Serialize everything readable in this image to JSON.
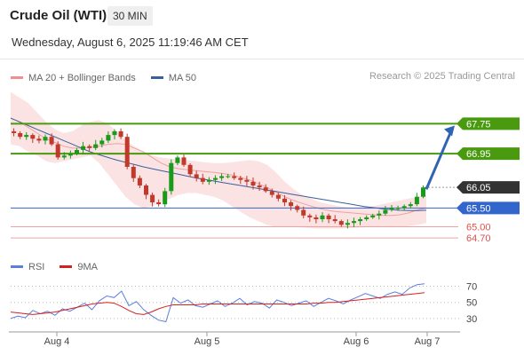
{
  "header": {
    "title": "Crude Oil (WTI)",
    "timeframe": "30 MIN",
    "datetime": "Wednesday, August 6, 2025 11:19:46 AM CET",
    "credit": "Research © 2025 Trading Central"
  },
  "colors": {
    "bollinger": "#f08f8f",
    "ma50": "#3a5f9e",
    "bullish": "#1a9a1a",
    "bearish": "#c0392b",
    "resistance": "#4a9a10",
    "support_line": "#3366cc",
    "pivot_tag": "#333333",
    "support_text": "#d9534f",
    "arrow": "#2e64b4",
    "rsi": "#5b7fde",
    "rsi_ma": "#d62020"
  },
  "chart_data": [
    {
      "type": "candlestick",
      "legend": [
        {
          "name": "MA 20 + Bollinger Bands",
          "color": "#f08f8f"
        },
        {
          "name": "MA 50",
          "color": "#3a5f9e"
        }
      ],
      "x_ticks": [
        "Aug 4",
        "Aug 5",
        "Aug 6",
        "Aug 7"
      ],
      "ylim": [
        64.3,
        68.4
      ],
      "levels": [
        {
          "value": 67.75,
          "label": "67.75",
          "kind": "resistance"
        },
        {
          "value": 66.95,
          "label": "66.95",
          "kind": "resistance"
        },
        {
          "value": 66.05,
          "label": "66.05",
          "kind": "pivot"
        },
        {
          "value": 65.5,
          "label": "65.50",
          "kind": "support"
        },
        {
          "value": 65.0,
          "label": "65.00",
          "kind": "minor"
        },
        {
          "value": 64.7,
          "label": "64.70",
          "kind": "minor"
        }
      ],
      "target_arrow": {
        "from": 66.0,
        "to": 67.7
      },
      "close_path": [
        67.5,
        67.4,
        67.45,
        67.35,
        67.3,
        67.4,
        67.2,
        66.85,
        66.9,
        66.95,
        67.05,
        67.15,
        67.1,
        67.2,
        67.3,
        67.45,
        67.55,
        67.4,
        66.6,
        66.3,
        66.1,
        65.85,
        65.65,
        65.6,
        65.95,
        66.7,
        66.85,
        66.65,
        66.4,
        66.3,
        66.2,
        66.25,
        66.3,
        66.35,
        66.35,
        66.3,
        66.25,
        66.2,
        66.1,
        66.05,
        65.95,
        65.85,
        65.75,
        65.65,
        65.55,
        65.45,
        65.3,
        65.25,
        65.2,
        65.3,
        65.2,
        65.15,
        65.05,
        65.1,
        65.15,
        65.2,
        65.25,
        65.3,
        65.35,
        65.45,
        65.5,
        65.5,
        65.55,
        65.6,
        65.8,
        66.05
      ],
      "ma20": [
        67.9,
        67.8,
        67.65,
        67.5,
        67.35,
        67.25,
        67.15,
        67.1,
        67.1,
        67.12,
        67.15,
        67.2,
        67.22,
        67.2,
        67.1,
        67.0,
        66.85,
        66.7,
        66.6,
        66.55,
        66.52,
        66.5,
        66.47,
        66.45,
        66.42,
        66.38,
        66.32,
        66.25,
        66.15,
        66.05,
        65.92,
        65.8,
        65.7,
        65.62,
        65.55,
        65.48,
        65.43,
        65.4,
        65.38,
        65.36,
        65.34,
        65.32,
        65.3,
        65.3,
        65.32,
        65.37,
        65.45,
        65.5
      ],
      "bb_upper": [
        68.6,
        68.45,
        68.3,
        68.05,
        67.8,
        67.6,
        67.5,
        67.55,
        67.7,
        67.8,
        67.85,
        67.75,
        67.55,
        67.3,
        67.15,
        67.0,
        66.9,
        66.85,
        66.82,
        66.8,
        66.78,
        66.75,
        66.72,
        66.7,
        66.7,
        66.72,
        66.75,
        66.78,
        66.75,
        66.65,
        66.45,
        66.2,
        66.0,
        65.85,
        65.75,
        65.65,
        65.6,
        65.55,
        65.52,
        65.5,
        65.52,
        65.55,
        65.6,
        65.65,
        65.7,
        65.75,
        65.8,
        65.85
      ],
      "bb_lower": [
        67.2,
        67.15,
        67.0,
        66.9,
        66.75,
        66.7,
        66.75,
        66.8,
        66.85,
        66.9,
        66.7,
        66.4,
        66.1,
        65.8,
        65.6,
        65.5,
        65.55,
        65.65,
        65.75,
        65.85,
        65.9,
        65.9,
        65.85,
        65.8,
        65.7,
        65.55,
        65.4,
        65.25,
        65.15,
        65.05,
        65.0,
        65.0,
        65.0,
        64.98,
        64.96,
        64.95,
        64.95,
        64.95,
        64.96,
        64.97,
        64.98,
        65.0,
        65.0,
        65.0,
        65.0,
        65.02,
        65.05,
        65.1
      ],
      "ma50": [
        67.9,
        67.8,
        67.7,
        67.6,
        67.5,
        67.4,
        67.3,
        67.2,
        67.1,
        67.0,
        66.92,
        66.85,
        66.78,
        66.72,
        66.66,
        66.6,
        66.55,
        66.5,
        66.45,
        66.4,
        66.35,
        66.3,
        66.26,
        66.22,
        66.18,
        66.14,
        66.1,
        66.06,
        66.02,
        65.98,
        65.94,
        65.9,
        65.86,
        65.82,
        65.78,
        65.74,
        65.7,
        65.66,
        65.62,
        65.58,
        65.54,
        65.51,
        65.48,
        65.46,
        65.44,
        65.43,
        65.43,
        65.44
      ]
    },
    {
      "type": "line",
      "legend": [
        {
          "name": "RSI",
          "color": "#5b7fde"
        },
        {
          "name": "9MA",
          "color": "#d62020"
        }
      ],
      "y_ticks": [
        70,
        50,
        30
      ],
      "ylim": [
        20,
        75
      ],
      "rsi": [
        30,
        33,
        31,
        40,
        36,
        39,
        34,
        42,
        39,
        44,
        49,
        41,
        52,
        58,
        56,
        64,
        46,
        51,
        41,
        34,
        28,
        26,
        56,
        49,
        53,
        46,
        44,
        48,
        52,
        45,
        49,
        55,
        47,
        51,
        49,
        43,
        53,
        50,
        46,
        49,
        52,
        45,
        50,
        55,
        52,
        48,
        53,
        57,
        61,
        58,
        55,
        60,
        63,
        60,
        68,
        72,
        73
      ],
      "rsi_ma": [
        38,
        37,
        36,
        35,
        36,
        37,
        38,
        40,
        42,
        44,
        46,
        48,
        49,
        50,
        49,
        45,
        40,
        36,
        35,
        38,
        42,
        45,
        47,
        47,
        47,
        47,
        48,
        48,
        48,
        48,
        48,
        48,
        48,
        48,
        48,
        48,
        48,
        48,
        48,
        48,
        48,
        49,
        49,
        50,
        50,
        51,
        52,
        53,
        54,
        55,
        56,
        57,
        58,
        59,
        60,
        61,
        62
      ]
    }
  ]
}
